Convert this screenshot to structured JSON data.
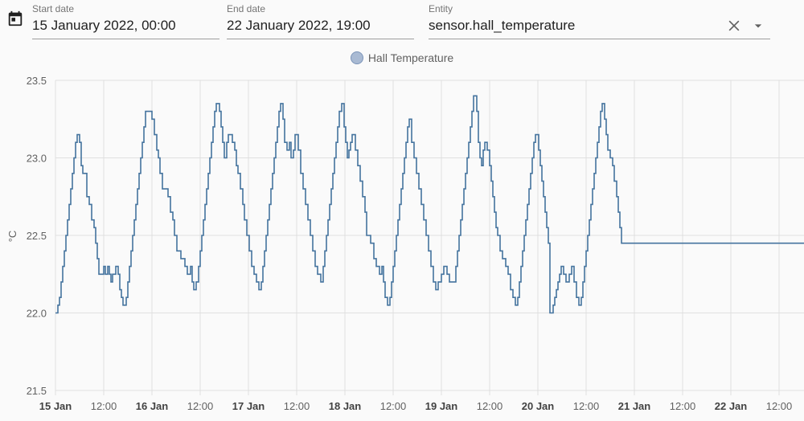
{
  "toolbar": {
    "calendar_icon": "calendar-icon",
    "start": {
      "label": "Start date",
      "value": "15 January 2022, 00:00"
    },
    "end": {
      "label": "End date",
      "value": "22 January 2022, 19:00"
    },
    "entity": {
      "label": "Entity",
      "value": "sensor.hall_temperature",
      "clear_icon": "close-icon",
      "dropdown_icon": "caret-down-icon"
    }
  },
  "colors": {
    "line": "#44739e",
    "legend_fill": "#a9bad3",
    "grid": "#e0e0e0"
  },
  "chart_data": {
    "type": "line",
    "step": true,
    "ylabel": "°C",
    "ylim": [
      21.5,
      23.5
    ],
    "yticks": [
      "21.5",
      "22.0",
      "22.5",
      "23.0",
      "23.5"
    ],
    "xlim": [
      0,
      188
    ],
    "xticks": [
      {
        "t": 0,
        "label": "15 Jan",
        "bold": true
      },
      {
        "t": 12,
        "label": "12:00",
        "bold": false
      },
      {
        "t": 24,
        "label": "16 Jan",
        "bold": true
      },
      {
        "t": 36,
        "label": "12:00",
        "bold": false
      },
      {
        "t": 48,
        "label": "17 Jan",
        "bold": true
      },
      {
        "t": 60,
        "label": "12:00",
        "bold": false
      },
      {
        "t": 72,
        "label": "18 Jan",
        "bold": true
      },
      {
        "t": 84,
        "label": "12:00",
        "bold": false
      },
      {
        "t": 96,
        "label": "19 Jan",
        "bold": true
      },
      {
        "t": 108,
        "label": "12:00",
        "bold": false
      },
      {
        "t": 120,
        "label": "20 Jan",
        "bold": true
      },
      {
        "t": 132,
        "label": "12:00",
        "bold": false
      },
      {
        "t": 144,
        "label": "21 Jan",
        "bold": true
      },
      {
        "t": 156,
        "label": "12:00",
        "bold": false
      },
      {
        "t": 168,
        "label": "22 Jan",
        "bold": true
      },
      {
        "t": 180,
        "label": "12:00",
        "bold": false
      }
    ],
    "series": [
      {
        "name": "Hall Temperature",
        "points": [
          [
            0,
            22.0
          ],
          [
            0.6,
            22.05
          ],
          [
            1.0,
            22.1
          ],
          [
            1.4,
            22.2
          ],
          [
            1.8,
            22.3
          ],
          [
            2.2,
            22.4
          ],
          [
            2.6,
            22.5
          ],
          [
            3.0,
            22.6
          ],
          [
            3.4,
            22.7
          ],
          [
            3.8,
            22.8
          ],
          [
            4.2,
            22.9
          ],
          [
            4.6,
            23.0
          ],
          [
            5.0,
            23.1
          ],
          [
            5.4,
            23.15
          ],
          [
            6.0,
            23.1
          ],
          [
            6.4,
            22.95
          ],
          [
            6.8,
            22.9
          ],
          [
            7.8,
            22.75
          ],
          [
            8.4,
            22.7
          ],
          [
            9.0,
            22.6
          ],
          [
            9.6,
            22.55
          ],
          [
            10.0,
            22.45
          ],
          [
            10.4,
            22.35
          ],
          [
            10.8,
            22.25
          ],
          [
            12.0,
            22.3
          ],
          [
            12.4,
            22.25
          ],
          [
            13.0,
            22.3
          ],
          [
            13.4,
            22.25
          ],
          [
            13.8,
            22.2
          ],
          [
            14.2,
            22.25
          ],
          [
            15.0,
            22.3
          ],
          [
            15.6,
            22.25
          ],
          [
            16.0,
            22.15
          ],
          [
            16.4,
            22.1
          ],
          [
            16.8,
            22.05
          ],
          [
            17.6,
            22.1
          ],
          [
            18.0,
            22.2
          ],
          [
            18.4,
            22.3
          ],
          [
            18.8,
            22.4
          ],
          [
            19.2,
            22.5
          ],
          [
            19.6,
            22.6
          ],
          [
            20.0,
            22.7
          ],
          [
            20.4,
            22.8
          ],
          [
            20.8,
            22.9
          ],
          [
            21.2,
            23.0
          ],
          [
            21.6,
            23.1
          ],
          [
            22.0,
            23.2
          ],
          [
            22.4,
            23.3
          ],
          [
            24.0,
            23.25
          ],
          [
            24.6,
            23.15
          ],
          [
            25.2,
            23.05
          ],
          [
            25.6,
            23.0
          ],
          [
            26.0,
            22.9
          ],
          [
            26.6,
            22.8
          ],
          [
            28.0,
            22.75
          ],
          [
            28.6,
            22.65
          ],
          [
            29.2,
            22.6
          ],
          [
            29.6,
            22.5
          ],
          [
            30.2,
            22.4
          ],
          [
            31.2,
            22.35
          ],
          [
            32.2,
            22.3
          ],
          [
            32.8,
            22.25
          ],
          [
            33.6,
            22.3
          ],
          [
            34.0,
            22.2
          ],
          [
            34.4,
            22.15
          ],
          [
            35.0,
            22.2
          ],
          [
            35.6,
            22.3
          ],
          [
            36.0,
            22.4
          ],
          [
            36.4,
            22.5
          ],
          [
            36.8,
            22.6
          ],
          [
            37.2,
            22.7
          ],
          [
            37.6,
            22.8
          ],
          [
            38.0,
            22.9
          ],
          [
            38.4,
            23.0
          ],
          [
            38.8,
            23.1
          ],
          [
            39.2,
            23.2
          ],
          [
            39.6,
            23.3
          ],
          [
            40.0,
            23.35
          ],
          [
            40.8,
            23.3
          ],
          [
            41.2,
            23.2
          ],
          [
            41.6,
            23.1
          ],
          [
            42.0,
            23.0
          ],
          [
            42.6,
            23.1
          ],
          [
            43.0,
            23.15
          ],
          [
            44.0,
            23.1
          ],
          [
            44.6,
            23.05
          ],
          [
            45.0,
            22.95
          ],
          [
            45.4,
            22.9
          ],
          [
            46.0,
            22.8
          ],
          [
            46.6,
            22.7
          ],
          [
            47.0,
            22.6
          ],
          [
            47.6,
            22.5
          ],
          [
            48.2,
            22.4
          ],
          [
            48.8,
            22.3
          ],
          [
            49.4,
            22.25
          ],
          [
            50.0,
            22.2
          ],
          [
            50.6,
            22.15
          ],
          [
            51.2,
            22.2
          ],
          [
            51.6,
            22.3
          ],
          [
            52.0,
            22.4
          ],
          [
            52.4,
            22.5
          ],
          [
            52.8,
            22.6
          ],
          [
            53.2,
            22.7
          ],
          [
            53.6,
            22.8
          ],
          [
            54.0,
            22.9
          ],
          [
            54.4,
            23.0
          ],
          [
            54.8,
            23.1
          ],
          [
            55.2,
            23.2
          ],
          [
            55.6,
            23.3
          ],
          [
            56.0,
            23.35
          ],
          [
            56.6,
            23.25
          ],
          [
            57.0,
            23.1
          ],
          [
            57.6,
            23.05
          ],
          [
            58.2,
            23.1
          ],
          [
            58.6,
            23.0
          ],
          [
            59.2,
            23.05
          ],
          [
            59.6,
            23.15
          ],
          [
            60.4,
            23.05
          ],
          [
            61.0,
            22.9
          ],
          [
            61.6,
            22.8
          ],
          [
            62.2,
            22.7
          ],
          [
            62.8,
            22.6
          ],
          [
            63.4,
            22.5
          ],
          [
            64.0,
            22.4
          ],
          [
            64.6,
            22.3
          ],
          [
            65.2,
            22.25
          ],
          [
            66.0,
            22.2
          ],
          [
            66.6,
            22.3
          ],
          [
            67.0,
            22.4
          ],
          [
            67.4,
            22.5
          ],
          [
            67.8,
            22.6
          ],
          [
            68.2,
            22.7
          ],
          [
            68.6,
            22.8
          ],
          [
            69.0,
            22.9
          ],
          [
            69.4,
            23.0
          ],
          [
            69.8,
            23.1
          ],
          [
            70.2,
            23.2
          ],
          [
            70.6,
            23.3
          ],
          [
            71.2,
            23.35
          ],
          [
            71.8,
            23.2
          ],
          [
            72.2,
            23.1
          ],
          [
            72.6,
            23.0
          ],
          [
            73.0,
            23.05
          ],
          [
            73.4,
            23.1
          ],
          [
            73.8,
            23.15
          ],
          [
            74.6,
            23.05
          ],
          [
            75.2,
            22.95
          ],
          [
            75.8,
            22.85
          ],
          [
            76.4,
            22.75
          ],
          [
            77.0,
            22.65
          ],
          [
            77.4,
            22.5
          ],
          [
            78.4,
            22.45
          ],
          [
            79.2,
            22.35
          ],
          [
            79.8,
            22.3
          ],
          [
            80.6,
            22.25
          ],
          [
            81.2,
            22.3
          ],
          [
            81.6,
            22.2
          ],
          [
            82.0,
            22.1
          ],
          [
            82.6,
            22.05
          ],
          [
            83.2,
            22.1
          ],
          [
            83.6,
            22.2
          ],
          [
            84.0,
            22.3
          ],
          [
            84.4,
            22.4
          ],
          [
            84.8,
            22.5
          ],
          [
            85.2,
            22.6
          ],
          [
            85.6,
            22.7
          ],
          [
            86.0,
            22.8
          ],
          [
            86.4,
            22.9
          ],
          [
            86.8,
            23.0
          ],
          [
            87.2,
            23.1
          ],
          [
            87.6,
            23.2
          ],
          [
            88.0,
            23.25
          ],
          [
            88.6,
            23.1
          ],
          [
            89.2,
            23.0
          ],
          [
            89.8,
            22.9
          ],
          [
            90.4,
            22.8
          ],
          [
            91.0,
            22.7
          ],
          [
            91.6,
            22.6
          ],
          [
            92.2,
            22.5
          ],
          [
            92.8,
            22.4
          ],
          [
            93.4,
            22.3
          ],
          [
            94.0,
            22.2
          ],
          [
            94.6,
            22.15
          ],
          [
            95.2,
            22.2
          ],
          [
            96.0,
            22.25
          ],
          [
            96.6,
            22.3
          ],
          [
            97.4,
            22.25
          ],
          [
            98.0,
            22.2
          ],
          [
            98.6,
            22.2
          ],
          [
            99.0,
            22.2
          ],
          [
            99.6,
            22.3
          ],
          [
            100.0,
            22.4
          ],
          [
            100.4,
            22.5
          ],
          [
            100.8,
            22.6
          ],
          [
            101.2,
            22.7
          ],
          [
            101.6,
            22.8
          ],
          [
            102.0,
            22.9
          ],
          [
            102.4,
            23.0
          ],
          [
            102.8,
            23.1
          ],
          [
            103.2,
            23.2
          ],
          [
            103.6,
            23.3
          ],
          [
            104.0,
            23.4
          ],
          [
            104.8,
            23.3
          ],
          [
            105.2,
            23.1
          ],
          [
            105.6,
            23.0
          ],
          [
            106.0,
            22.95
          ],
          [
            106.4,
            23.05
          ],
          [
            106.8,
            23.1
          ],
          [
            107.4,
            23.05
          ],
          [
            108.0,
            22.95
          ],
          [
            108.4,
            22.85
          ],
          [
            108.8,
            22.75
          ],
          [
            109.2,
            22.65
          ],
          [
            109.6,
            22.55
          ],
          [
            110.0,
            22.5
          ],
          [
            110.6,
            22.4
          ],
          [
            111.2,
            22.35
          ],
          [
            112.0,
            22.3
          ],
          [
            112.6,
            22.25
          ],
          [
            113.2,
            22.15
          ],
          [
            113.8,
            22.1
          ],
          [
            114.4,
            22.05
          ],
          [
            115.0,
            22.1
          ],
          [
            115.4,
            22.2
          ],
          [
            115.8,
            22.3
          ],
          [
            116.2,
            22.4
          ],
          [
            116.6,
            22.5
          ],
          [
            117.0,
            22.6
          ],
          [
            117.4,
            22.7
          ],
          [
            117.8,
            22.8
          ],
          [
            118.2,
            22.9
          ],
          [
            118.6,
            23.0
          ],
          [
            119.0,
            23.1
          ],
          [
            119.4,
            23.15
          ],
          [
            120.2,
            23.05
          ],
          [
            120.6,
            22.95
          ],
          [
            121.0,
            22.85
          ],
          [
            121.4,
            22.75
          ],
          [
            121.8,
            22.65
          ],
          [
            122.2,
            22.55
          ],
          [
            122.6,
            22.45
          ],
          [
            123.0,
            22.0
          ],
          [
            123.8,
            22.05
          ],
          [
            124.2,
            22.1
          ],
          [
            124.6,
            22.15
          ],
          [
            125.0,
            22.2
          ],
          [
            125.4,
            22.25
          ],
          [
            125.8,
            22.3
          ],
          [
            126.4,
            22.25
          ],
          [
            127.0,
            22.2
          ],
          [
            127.8,
            22.25
          ],
          [
            128.4,
            22.3
          ],
          [
            129.0,
            22.2
          ],
          [
            129.6,
            22.1
          ],
          [
            130.2,
            22.05
          ],
          [
            130.8,
            22.1
          ],
          [
            131.2,
            22.2
          ],
          [
            131.6,
            22.3
          ],
          [
            132.0,
            22.4
          ],
          [
            132.4,
            22.5
          ],
          [
            132.8,
            22.6
          ],
          [
            133.2,
            22.7
          ],
          [
            133.6,
            22.8
          ],
          [
            134.0,
            22.9
          ],
          [
            134.4,
            23.0
          ],
          [
            134.8,
            23.1
          ],
          [
            135.2,
            23.2
          ],
          [
            135.6,
            23.3
          ],
          [
            136.0,
            23.35
          ],
          [
            136.6,
            23.25
          ],
          [
            137.0,
            23.15
          ],
          [
            137.4,
            23.05
          ],
          [
            138.0,
            23.0
          ],
          [
            138.6,
            22.95
          ],
          [
            139.0,
            22.85
          ],
          [
            139.6,
            22.75
          ],
          [
            140.0,
            22.65
          ],
          [
            140.4,
            22.55
          ],
          [
            140.8,
            22.45
          ]
        ]
      }
    ]
  }
}
